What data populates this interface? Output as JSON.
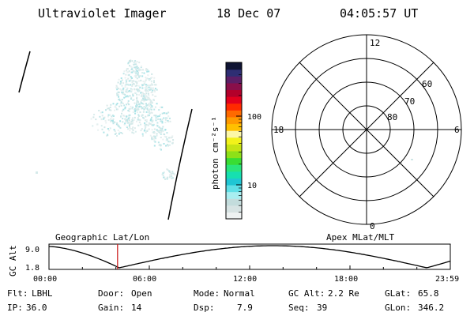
{
  "header": {
    "instrument": "Ultraviolet Imager",
    "date": "18 Dec 07",
    "time": "04:05:57 UT"
  },
  "colorbar": {
    "unit_label": "photon cm⁻²s⁻¹",
    "ticks": [
      {
        "label": "100",
        "value": 100
      },
      {
        "label": "10",
        "value": 10
      }
    ],
    "colors": [
      "#eef2f2",
      "#d7e3e3",
      "#c3dcdc",
      "#a8eef0",
      "#60dfe6",
      "#20c6d4",
      "#16e0b0",
      "#2ae57a",
      "#39dd33",
      "#8ee018",
      "#c6e414",
      "#f2f21a",
      "#fcf7a8",
      "#ffc000",
      "#ff9a00",
      "#ff6a00",
      "#ff2a00",
      "#e3001d",
      "#b3002a",
      "#8a0f4a",
      "#5c1e66",
      "#2e2e73",
      "#0f1433"
    ]
  },
  "polar_plot": {
    "top_label": "12",
    "bottom_label": "0",
    "left_label": "18",
    "right_label": "6",
    "ring_labels": [
      "60",
      "70",
      "80"
    ]
  },
  "timeline": {
    "left_title": "Geographic Lat/Lon",
    "right_title": "Apex MLat/MLT",
    "y_axis_label": "GC Alt",
    "y_max_label": "9.0",
    "y_min_label": "1.8",
    "x_ticks": [
      "00:00",
      "06:00",
      "12:00",
      "18:00",
      "23:59"
    ],
    "current_hour": 4.1,
    "marker_color": "#cc2222"
  },
  "info": {
    "row1": [
      {
        "key": "Flt:",
        "value": "LBHL"
      },
      {
        "key": "Door:",
        "value": "Open"
      },
      {
        "key": "Mode:",
        "value": "Normal"
      },
      {
        "key": "GC Alt:",
        "value": "2.2 Re"
      },
      {
        "key": "GLat:",
        "value": "65.8"
      }
    ],
    "row2": [
      {
        "key": "IP:",
        "value": "36.0"
      },
      {
        "key": "Gain:",
        "value": "14"
      },
      {
        "key": "Dsp:",
        "value": "7.9"
      },
      {
        "key": "Seq:",
        "value": "39"
      },
      {
        "key": "GLon:",
        "value": "346.2"
      }
    ]
  }
}
